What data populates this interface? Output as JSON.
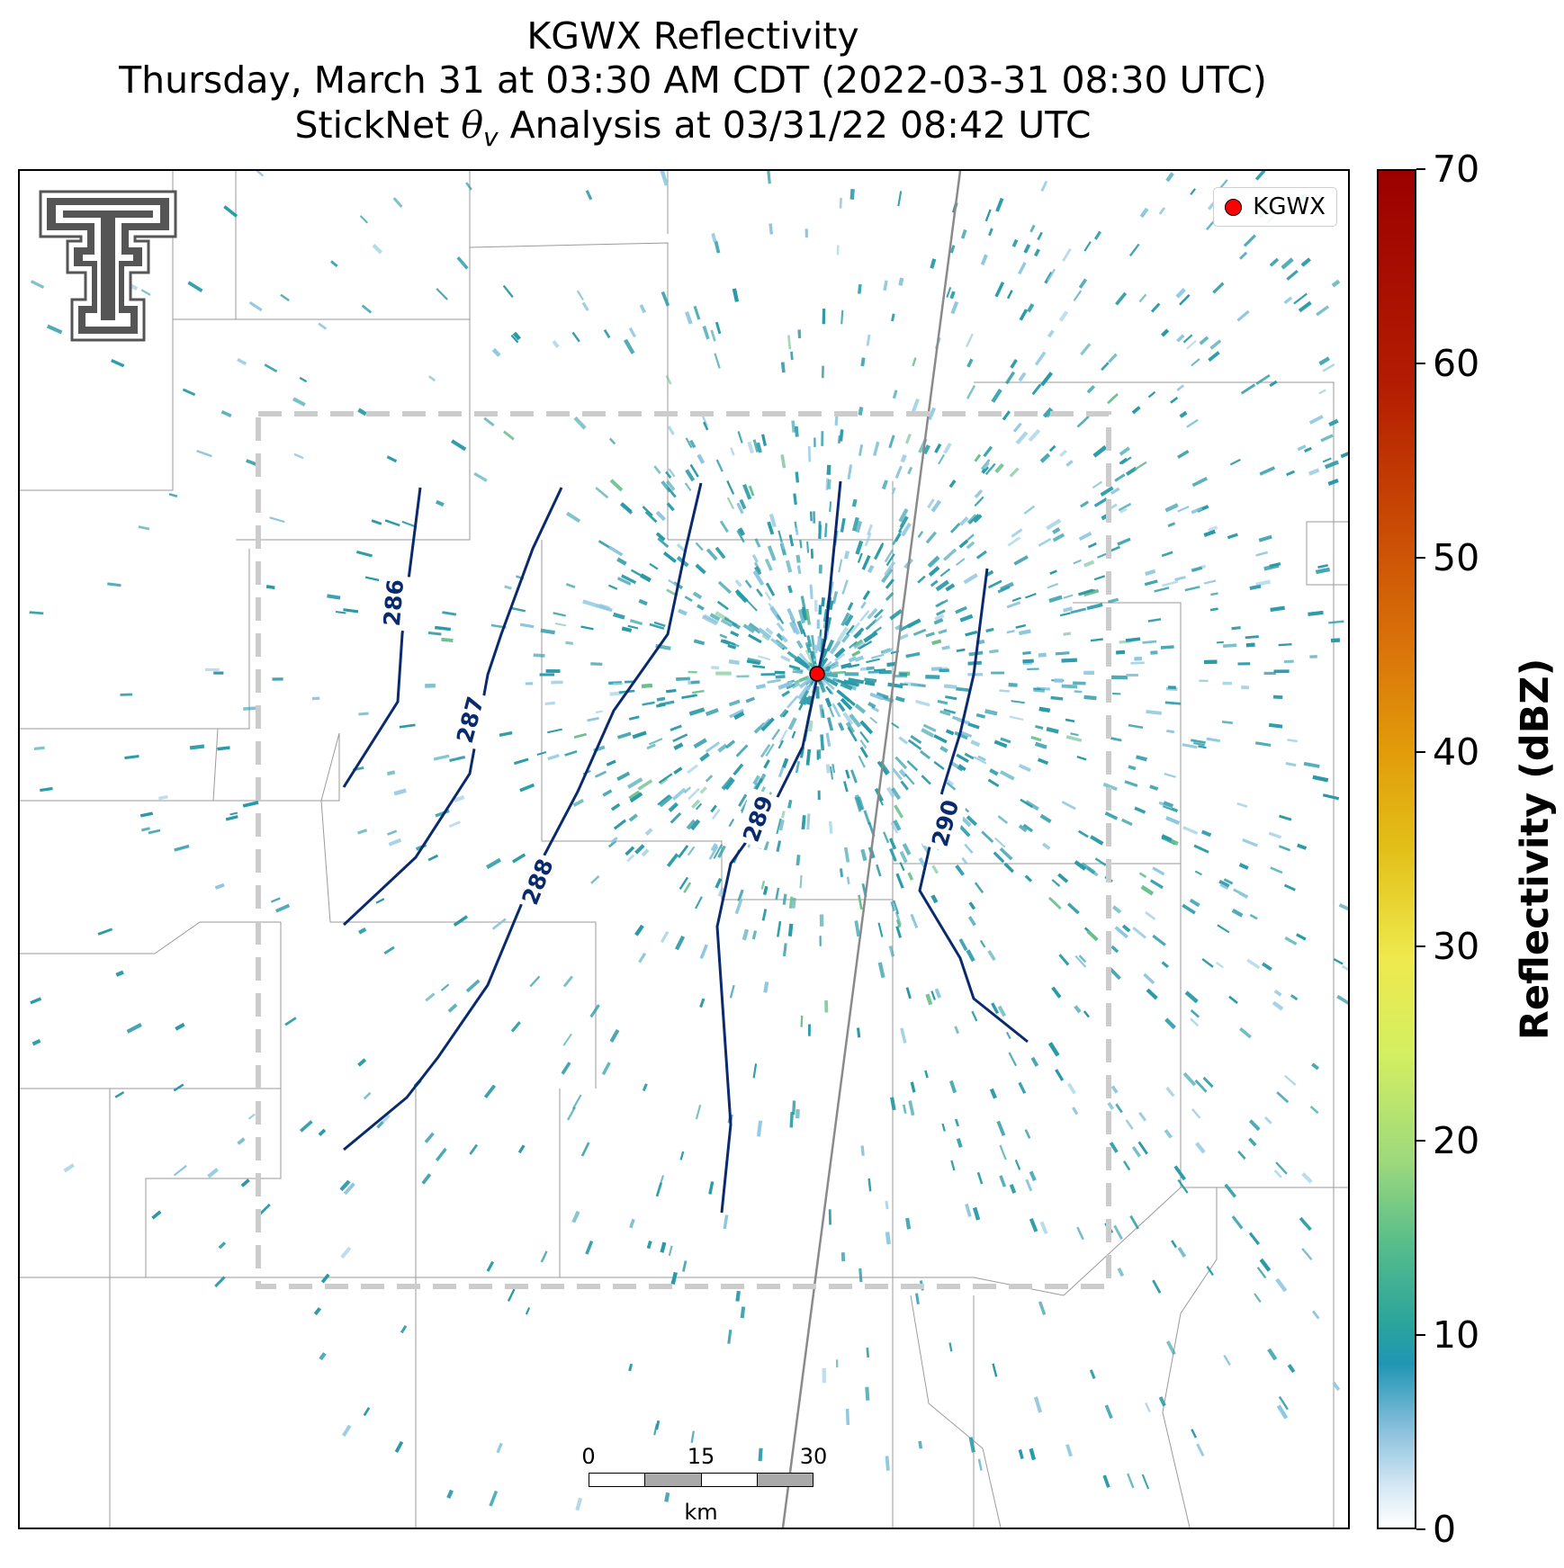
{
  "title": {
    "line1": "KGWX Reflectivity",
    "line2": "Thursday, March 31 at 03:30 AM CDT (2022-03-31 08:30 UTC)",
    "line3_prefix": "StickNet ",
    "line3_symbol": "θ",
    "line3_sub": "v",
    "line3_suffix": " Analysis at 03/31/22 08:42 UTC"
  },
  "legend": {
    "label": "KGWX",
    "marker_color": "#ff0000"
  },
  "radar_site": {
    "name": "KGWX",
    "color": "#ff0000"
  },
  "contours": {
    "color": "#0a2a6e",
    "levels": [
      "286",
      "287",
      "288",
      "289",
      "290"
    ]
  },
  "scalebar": {
    "ticks": [
      "0",
      "15",
      "30"
    ],
    "unit": "km"
  },
  "colorbar": {
    "label": "Reflectivity (dBZ)",
    "ticks": [
      "0",
      "10",
      "20",
      "30",
      "40",
      "50",
      "60",
      "70"
    ],
    "range": [
      0,
      70
    ]
  },
  "colors": {
    "echo_main": "#2a9aa8",
    "echo_light": "#8ec7e0",
    "echo_green": "#6cc090",
    "analysis_box": "#cccccc",
    "county_lines": "#9a9a9a",
    "highway": "#8a8a8a",
    "logo": "#555555"
  },
  "logo": {
    "icon": "double-t-logo-icon"
  }
}
